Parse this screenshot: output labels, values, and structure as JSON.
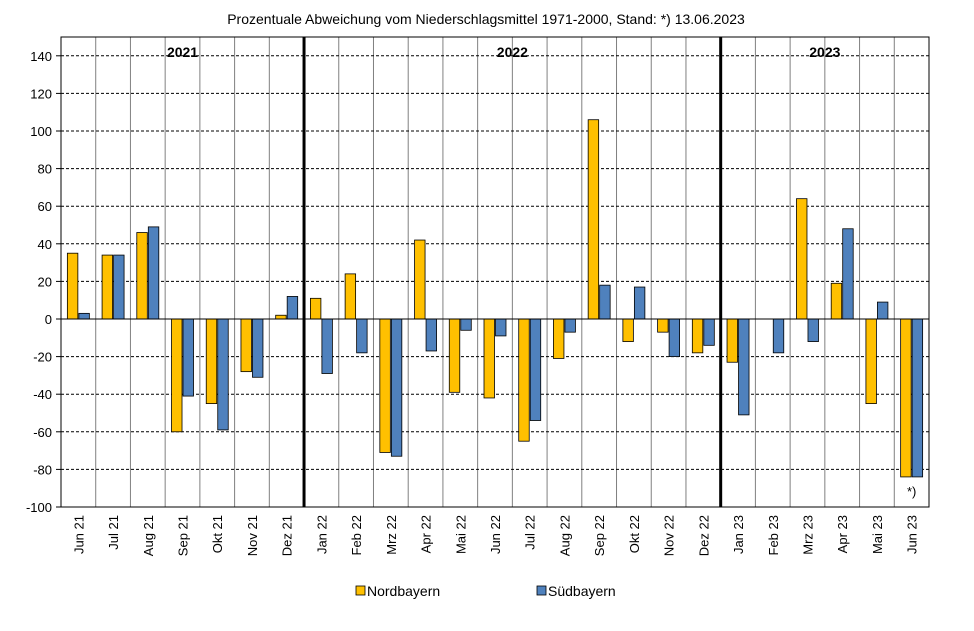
{
  "chart_data": {
    "type": "bar",
    "title": "Prozentuale Abweichung vom Niederschlagsmittel 1971-2000,  Stand: *) 13.06.2023",
    "xlabel": "",
    "ylabel": "",
    "ylim": [
      -100,
      150
    ],
    "yticks": [
      140,
      120,
      100,
      80,
      60,
      40,
      20,
      0,
      -20,
      -40,
      -60,
      -80,
      -100
    ],
    "grid": "horizontal dashed",
    "legend_position": "bottom",
    "categories": [
      "Jun 21",
      "Jul 21",
      "Aug 21",
      "Sep 21",
      "Okt 21",
      "Nov 21",
      "Dez 21",
      "Jan 22",
      "Feb 22",
      "Mrz 22",
      "Apr 22",
      "Mai 22",
      "Jun 22",
      "Jul 22",
      "Aug 22",
      "Sep 22",
      "Okt 22",
      "Nov 22",
      "Dez 22",
      "Jan 23",
      "Feb 23",
      "Mrz 23",
      "Apr 23",
      "Mai 23",
      "Jun 23"
    ],
    "series": [
      {
        "name": "Nordbayern",
        "color": "#FFC000",
        "values": [
          35,
          34,
          46,
          -60,
          -45,
          -28,
          2,
          11,
          24,
          -71,
          42,
          -39,
          -42,
          -65,
          -21,
          106,
          -12,
          -7,
          -18,
          -23,
          0,
          64,
          19,
          -45,
          -84
        ]
      },
      {
        "name": "Südbayern",
        "color": "#4F81BD",
        "values": [
          3,
          34,
          49,
          -41,
          -59,
          -31,
          12,
          -29,
          -18,
          -73,
          -17,
          -6,
          -9,
          -54,
          -7,
          18,
          17,
          -20,
          -14,
          -51,
          -18,
          -12,
          48,
          9,
          -84
        ]
      }
    ],
    "year_groups": [
      {
        "label": "2021",
        "start": 0,
        "end": 6
      },
      {
        "label": "2022",
        "start": 7,
        "end": 18
      },
      {
        "label": "2023",
        "start": 19,
        "end": 24
      }
    ],
    "annotations": [
      {
        "text": "*)",
        "category": "Jun 23"
      }
    ]
  }
}
